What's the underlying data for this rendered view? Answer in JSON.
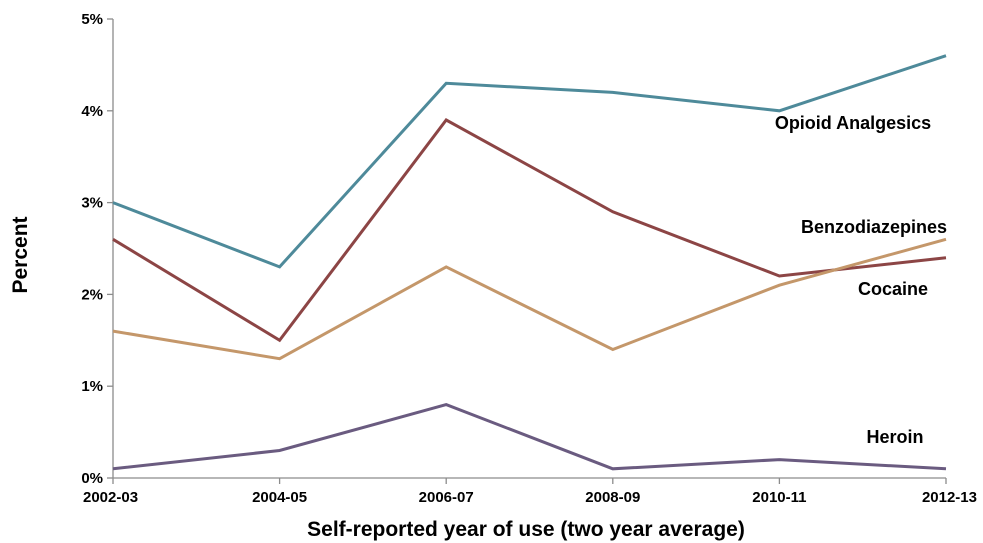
{
  "chart_data": {
    "type": "line",
    "xlabel": "Self-reported year of use (two year average)",
    "ylabel": "Percent",
    "categories": [
      "2002-03",
      "2004-05",
      "2006-07",
      "2008-09",
      "2010-11",
      "2012-13"
    ],
    "ylim": [
      0,
      5
    ],
    "yticks": [
      0,
      1,
      2,
      3,
      4,
      5
    ],
    "ytick_labels": [
      "0%",
      "1%",
      "2%",
      "3%",
      "4%",
      "5%"
    ],
    "grid": false,
    "legend": "direct labels",
    "series": [
      {
        "name": "Opioid Analgesics",
        "color": "#4e8a9a",
        "values": [
          3.0,
          2.3,
          4.3,
          4.2,
          4.0,
          4.6
        ]
      },
      {
        "name": "Cocaine",
        "color": "#8c4545",
        "values": [
          2.6,
          1.5,
          3.9,
          2.9,
          2.2,
          2.4
        ]
      },
      {
        "name": "Benzodiazepines",
        "color": "#c4976a",
        "values": [
          1.6,
          1.3,
          2.3,
          1.4,
          2.1,
          2.6
        ]
      },
      {
        "name": "Heroin",
        "color": "#6a5b80",
        "values": [
          0.1,
          0.3,
          0.8,
          0.1,
          0.2,
          0.1
        ]
      }
    ]
  }
}
